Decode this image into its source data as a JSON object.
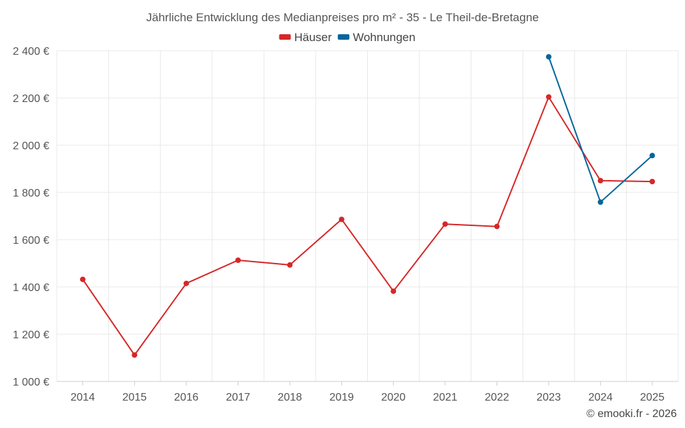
{
  "chart_data": {
    "type": "line",
    "title": "Jährliche Entwicklung des Medianpreises pro m² - 35 - Le Theil-de-Bretagne",
    "categories": [
      "2014",
      "2015",
      "2016",
      "2017",
      "2018",
      "2019",
      "2020",
      "2021",
      "2022",
      "2023",
      "2024",
      "2025"
    ],
    "series": [
      {
        "name": "Häuser",
        "color": "#d62728",
        "values": [
          1432,
          1112,
          1415,
          1513,
          1493,
          1686,
          1382,
          1666,
          1656,
          2204,
          1850,
          1846
        ]
      },
      {
        "name": "Wohnungen",
        "color": "#04669c",
        "values": [
          null,
          null,
          null,
          null,
          null,
          null,
          null,
          null,
          null,
          2374,
          1759,
          1956
        ]
      }
    ],
    "ylim": [
      1000,
      2400
    ],
    "yticks": [
      1000,
      1200,
      1400,
      1600,
      1800,
      2000,
      2200,
      2400
    ],
    "ytick_labels": [
      "1 000 €",
      "1 200 €",
      "1 400 €",
      "1 600 €",
      "1 800 €",
      "2 000 €",
      "2 200 €",
      "2 400 €"
    ],
    "xlabel": "",
    "ylabel": "",
    "grid": true,
    "legend_position": "top-center"
  },
  "credit": "© emooki.fr - 2026"
}
